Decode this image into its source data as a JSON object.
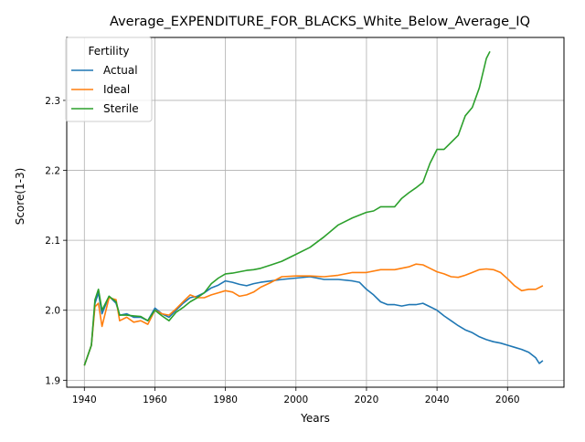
{
  "chart_data": {
    "type": "line",
    "title": "Average_EXPENDITURE_FOR_BLACKS_White_Below_Average_IQ",
    "xlabel": "Years",
    "ylabel": "Score(1-3)",
    "xlim": [
      1935,
      2076
    ],
    "ylim": [
      1.89,
      2.39
    ],
    "xticks": [
      1940,
      1960,
      1980,
      2000,
      2020,
      2040,
      2060
    ],
    "yticks": [
      1.9,
      2.0,
      2.1,
      2.2,
      2.3
    ],
    "xtick_labels": [
      "1940",
      "1960",
      "1980",
      "2000",
      "2020",
      "2040",
      "2060"
    ],
    "ytick_labels": [
      "1.9",
      "2.0",
      "2.1",
      "2.2",
      "2.3"
    ],
    "grid": true,
    "legend": {
      "title": "Fertility",
      "position": "top-left"
    },
    "series": [
      {
        "name": "Actual",
        "color": "#1f77b4",
        "points": [
          [
            1940,
            1.921
          ],
          [
            1942,
            1.95
          ],
          [
            1943,
            2.01
          ],
          [
            1944,
            2.025
          ],
          [
            1945,
            1.995
          ],
          [
            1947,
            2.02
          ],
          [
            1949,
            2.01
          ],
          [
            1950,
            1.993
          ],
          [
            1952,
            1.995
          ],
          [
            1954,
            1.99
          ],
          [
            1956,
            1.99
          ],
          [
            1958,
            1.985
          ],
          [
            1960,
            2.003
          ],
          [
            1962,
            1.995
          ],
          [
            1964,
            1.99
          ],
          [
            1966,
            2.0
          ],
          [
            1968,
            2.01
          ],
          [
            1970,
            2.018
          ],
          [
            1972,
            2.02
          ],
          [
            1974,
            2.025
          ],
          [
            1976,
            2.032
          ],
          [
            1978,
            2.036
          ],
          [
            1980,
            2.042
          ],
          [
            1982,
            2.04
          ],
          [
            1984,
            2.037
          ],
          [
            1986,
            2.035
          ],
          [
            1988,
            2.038
          ],
          [
            1990,
            2.04
          ],
          [
            1993,
            2.042
          ],
          [
            1996,
            2.044
          ],
          [
            2000,
            2.046
          ],
          [
            2004,
            2.048
          ],
          [
            2008,
            2.044
          ],
          [
            2012,
            2.044
          ],
          [
            2016,
            2.042
          ],
          [
            2018,
            2.04
          ],
          [
            2020,
            2.03
          ],
          [
            2022,
            2.022
          ],
          [
            2024,
            2.012
          ],
          [
            2026,
            2.008
          ],
          [
            2028,
            2.008
          ],
          [
            2030,
            2.006
          ],
          [
            2032,
            2.008
          ],
          [
            2034,
            2.008
          ],
          [
            2036,
            2.01
          ],
          [
            2038,
            2.005
          ],
          [
            2040,
            2.0
          ],
          [
            2042,
            1.992
          ],
          [
            2044,
            1.985
          ],
          [
            2046,
            1.978
          ],
          [
            2048,
            1.972
          ],
          [
            2050,
            1.968
          ],
          [
            2052,
            1.962
          ],
          [
            2054,
            1.958
          ],
          [
            2056,
            1.955
          ],
          [
            2058,
            1.953
          ],
          [
            2060,
            1.95
          ],
          [
            2062,
            1.947
          ],
          [
            2064,
            1.944
          ],
          [
            2066,
            1.94
          ],
          [
            2068,
            1.932
          ],
          [
            2069,
            1.924
          ],
          [
            2070,
            1.928
          ]
        ]
      },
      {
        "name": "Ideal",
        "color": "#ff7f0e",
        "points": [
          [
            1940,
            1.921
          ],
          [
            1942,
            1.95
          ],
          [
            1943,
            2.005
          ],
          [
            1944,
            2.01
          ],
          [
            1945,
            1.977
          ],
          [
            1947,
            2.018
          ],
          [
            1949,
            2.015
          ],
          [
            1950,
            1.985
          ],
          [
            1952,
            1.99
          ],
          [
            1954,
            1.983
          ],
          [
            1956,
            1.985
          ],
          [
            1958,
            1.98
          ],
          [
            1960,
            2.0
          ],
          [
            1962,
            1.995
          ],
          [
            1964,
            1.993
          ],
          [
            1966,
            2.002
          ],
          [
            1968,
            2.012
          ],
          [
            1970,
            2.022
          ],
          [
            1972,
            2.018
          ],
          [
            1974,
            2.018
          ],
          [
            1976,
            2.022
          ],
          [
            1978,
            2.025
          ],
          [
            1980,
            2.028
          ],
          [
            1982,
            2.026
          ],
          [
            1984,
            2.02
          ],
          [
            1986,
            2.022
          ],
          [
            1988,
            2.026
          ],
          [
            1990,
            2.033
          ],
          [
            1993,
            2.04
          ],
          [
            1996,
            2.048
          ],
          [
            2000,
            2.049
          ],
          [
            2004,
            2.049
          ],
          [
            2008,
            2.048
          ],
          [
            2012,
            2.05
          ],
          [
            2016,
            2.054
          ],
          [
            2020,
            2.054
          ],
          [
            2024,
            2.058
          ],
          [
            2028,
            2.058
          ],
          [
            2032,
            2.062
          ],
          [
            2034,
            2.066
          ],
          [
            2036,
            2.065
          ],
          [
            2038,
            2.06
          ],
          [
            2040,
            2.055
          ],
          [
            2042,
            2.052
          ],
          [
            2044,
            2.048
          ],
          [
            2046,
            2.047
          ],
          [
            2048,
            2.05
          ],
          [
            2050,
            2.054
          ],
          [
            2052,
            2.058
          ],
          [
            2054,
            2.059
          ],
          [
            2056,
            2.058
          ],
          [
            2058,
            2.054
          ],
          [
            2060,
            2.045
          ],
          [
            2062,
            2.035
          ],
          [
            2064,
            2.028
          ],
          [
            2066,
            2.03
          ],
          [
            2068,
            2.03
          ],
          [
            2070,
            2.035
          ]
        ]
      },
      {
        "name": "Sterile",
        "color": "#2ca02c",
        "points": [
          [
            1940,
            1.921
          ],
          [
            1942,
            1.95
          ],
          [
            1943,
            2.015
          ],
          [
            1944,
            2.03
          ],
          [
            1945,
            2.0
          ],
          [
            1947,
            2.02
          ],
          [
            1949,
            2.012
          ],
          [
            1950,
            1.993
          ],
          [
            1952,
            1.993
          ],
          [
            1954,
            1.992
          ],
          [
            1956,
            1.991
          ],
          [
            1958,
            1.985
          ],
          [
            1960,
            2.0
          ],
          [
            1962,
            1.992
          ],
          [
            1964,
            1.985
          ],
          [
            1966,
            1.997
          ],
          [
            1968,
            2.004
          ],
          [
            1970,
            2.012
          ],
          [
            1972,
            2.018
          ],
          [
            1974,
            2.025
          ],
          [
            1976,
            2.038
          ],
          [
            1978,
            2.046
          ],
          [
            1980,
            2.052
          ],
          [
            1982,
            2.053
          ],
          [
            1984,
            2.055
          ],
          [
            1986,
            2.057
          ],
          [
            1988,
            2.058
          ],
          [
            1990,
            2.06
          ],
          [
            1993,
            2.065
          ],
          [
            1996,
            2.07
          ],
          [
            2000,
            2.08
          ],
          [
            2004,
            2.09
          ],
          [
            2008,
            2.105
          ],
          [
            2012,
            2.122
          ],
          [
            2016,
            2.132
          ],
          [
            2020,
            2.14
          ],
          [
            2022,
            2.142
          ],
          [
            2024,
            2.148
          ],
          [
            2026,
            2.148
          ],
          [
            2028,
            2.148
          ],
          [
            2030,
            2.16
          ],
          [
            2032,
            2.168
          ],
          [
            2034,
            2.175
          ],
          [
            2036,
            2.183
          ],
          [
            2038,
            2.21
          ],
          [
            2040,
            2.23
          ],
          [
            2042,
            2.23
          ],
          [
            2044,
            2.24
          ],
          [
            2046,
            2.25
          ],
          [
            2048,
            2.278
          ],
          [
            2050,
            2.29
          ],
          [
            2052,
            2.318
          ],
          [
            2054,
            2.36
          ],
          [
            2055,
            2.37
          ]
        ]
      }
    ]
  }
}
